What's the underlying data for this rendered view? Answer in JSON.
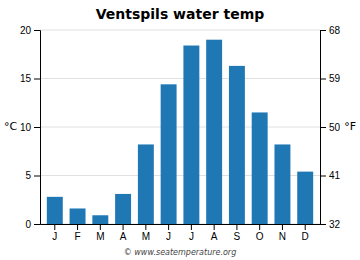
{
  "chart_data": {
    "type": "bar",
    "title": "Ventspils water temp",
    "categories": [
      "J",
      "F",
      "M",
      "A",
      "M",
      "J",
      "J",
      "A",
      "S",
      "O",
      "N",
      "D"
    ],
    "values": [
      2.8,
      1.6,
      0.9,
      3.1,
      8.2,
      14.4,
      18.4,
      19.0,
      16.3,
      11.5,
      8.2,
      5.4
    ],
    "ylim": [
      0,
      20
    ],
    "yticks": [
      0,
      5,
      10,
      15,
      20
    ],
    "y2lim": [
      32,
      68
    ],
    "y2ticks": [
      32,
      41,
      50,
      59,
      68
    ],
    "ylabel": "°C",
    "y2label": "°F",
    "grid": true,
    "annotations": [
      "© www.seatemperature.org"
    ]
  }
}
